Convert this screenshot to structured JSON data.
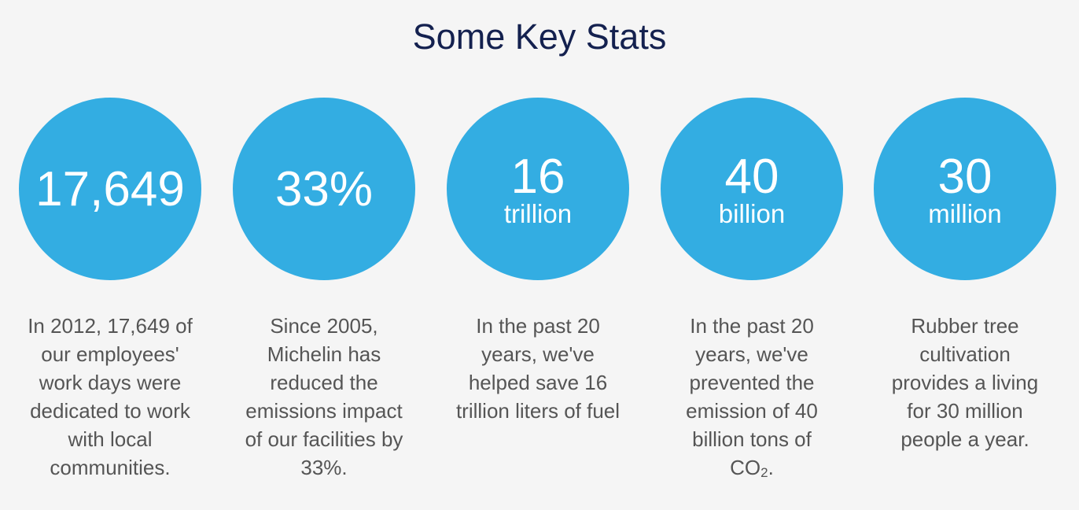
{
  "title": "Some Key Stats",
  "stats": [
    {
      "number": "17,649",
      "unit": "",
      "description_lines": [
        "In 2012, 17,649 of",
        "our employees'",
        "work days were",
        "dedicated to work",
        "with local",
        "communities."
      ]
    },
    {
      "number": "33%",
      "unit": "",
      "description_lines": [
        "Since 2005,",
        "Michelin has",
        "reduced the",
        "emissions impact",
        "of our facilities by",
        "33%."
      ]
    },
    {
      "number": "16",
      "unit": "trillion",
      "description_lines": [
        "In the past 20",
        "years, we've",
        "helped save 16",
        "trillion liters of fuel"
      ]
    },
    {
      "number": "40",
      "unit": "billion",
      "description_lines": [
        "In the past 20",
        "years, we've",
        "prevented the",
        "emission of 40",
        "billion tons of"
      ],
      "description_last": {
        "prefix": "CO",
        "subscript": "2",
        "suffix": "."
      }
    },
    {
      "number": "30",
      "unit": "million",
      "description_lines": [
        "Rubber tree",
        "cultivation",
        "provides a living",
        "for 30 million",
        "people a year."
      ]
    }
  ],
  "colors": {
    "background": "#f5f5f5",
    "circle": "#33ade2",
    "title": "#14214f",
    "text": "#555555"
  }
}
